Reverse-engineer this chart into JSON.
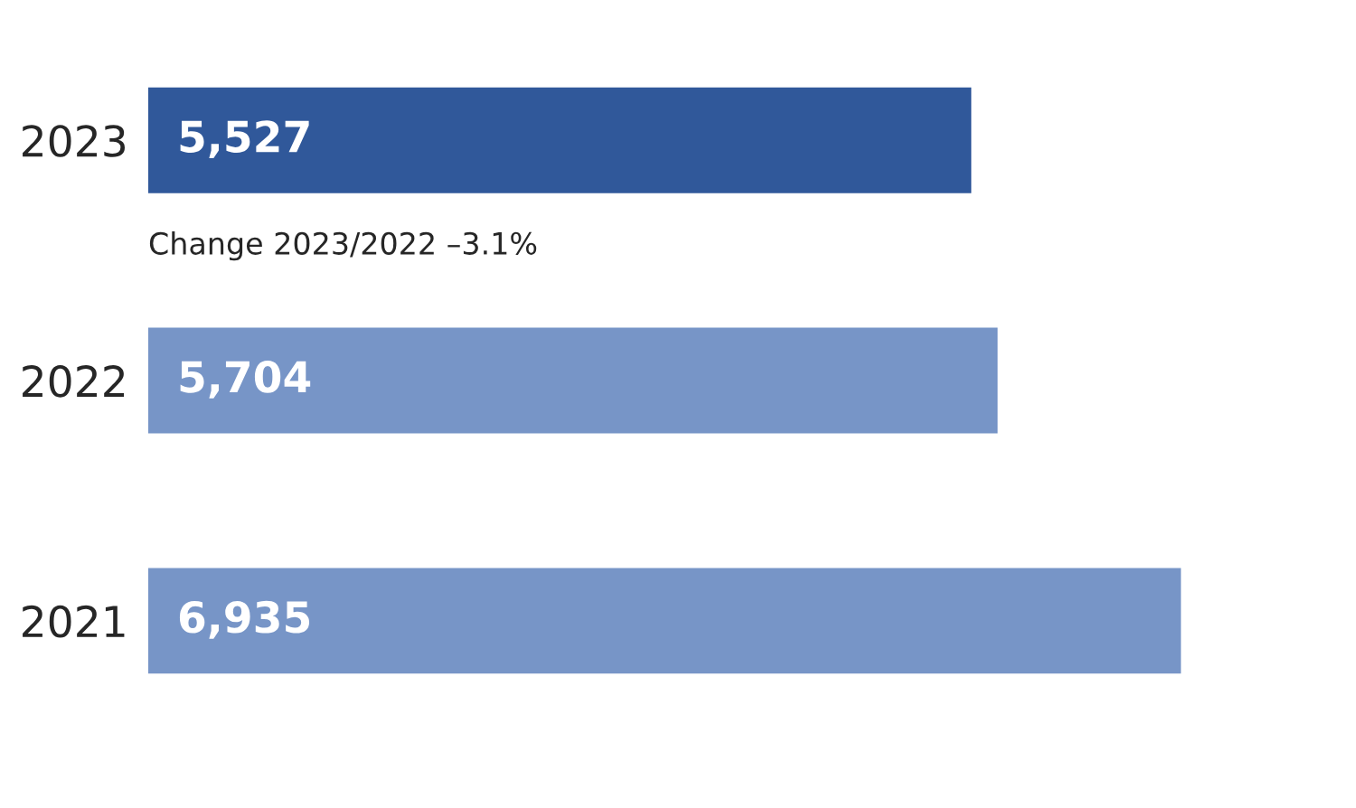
{
  "chart_data": {
    "type": "bar",
    "orientation": "horizontal",
    "categories": [
      "2023",
      "2022",
      "2021"
    ],
    "values": [
      5527,
      5704,
      6935
    ],
    "colors": [
      "#30589a",
      "#7795c7",
      "#7795c7"
    ],
    "value_labels": [
      "5,527",
      "5,704",
      "6,935"
    ],
    "annotations": [
      "Change 2023/2022 –3.1%"
    ],
    "tick_labels": "y",
    "grid": false,
    "legend": false
  }
}
